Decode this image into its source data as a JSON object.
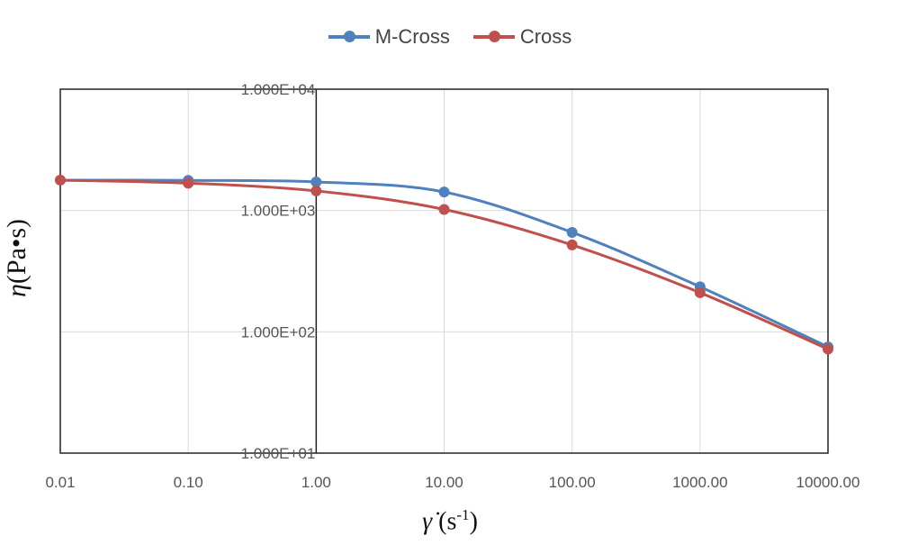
{
  "chart_data": {
    "type": "line",
    "x_scale": "log",
    "y_scale": "log",
    "x": [
      0.01,
      0.1,
      1,
      10,
      100,
      1000,
      10000
    ],
    "x_tick_labels": [
      "0.01",
      "0.10",
      "1.00",
      "10.00",
      "100.00",
      "1000.00",
      "10000.00"
    ],
    "y_ticks": [
      10,
      100,
      1000,
      10000
    ],
    "y_tick_labels": [
      "1.000E+01",
      "1.000E+02",
      "1.000E+03",
      "1.000E+04"
    ],
    "xlim": [
      0.01,
      10000
    ],
    "ylim": [
      10,
      10000
    ],
    "xlabel": "γ̇ (s-1)",
    "ylabel": "η(Pa•s)",
    "grid": true,
    "legend_position": "top-center",
    "series": [
      {
        "name": "M-Cross",
        "color": "#4F81BD",
        "values": [
          1780,
          1770,
          1720,
          1420,
          660,
          235,
          75
        ]
      },
      {
        "name": "Cross",
        "color": "#C0504D",
        "values": [
          1780,
          1680,
          1450,
          1020,
          520,
          210,
          72
        ]
      }
    ]
  },
  "axis_text": {
    "ylabel_symbol": "η",
    "ylabel_unit": "(Pa•s)",
    "xlabel_symbol": "γ̇",
    "xlabel_unit_open": " (s",
    "xlabel_unit_sup": "-1",
    "xlabel_unit_close": ")"
  }
}
